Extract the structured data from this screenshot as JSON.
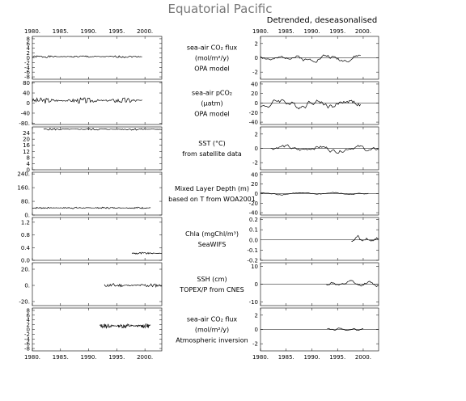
{
  "title": "Equatorial Pacific",
  "right_title": "Detrended, deseasonalised",
  "x_ticks": [
    "1980.",
    "1985.",
    "1990.",
    "1995.",
    "2000."
  ],
  "chart_data": [
    {
      "type": "line",
      "label_lines": [
        "sea-air CO₂ flux",
        "(mol/m²/y)",
        "OPA model"
      ],
      "left": {
        "xlim": [
          1980,
          2003
        ],
        "ylim": [
          -9,
          9
        ],
        "ticks": [
          8,
          6,
          4,
          2,
          0,
          -2,
          -4,
          -6,
          -8
        ],
        "tick_labels": [
          "8",
          "6",
          "4",
          "2",
          "0",
          "-2",
          "-4",
          "-6",
          "-8"
        ],
        "series": [
          {
            "x_start": 1980,
            "x_end": 1999.5,
            "mean": 0.5,
            "amp": 0.5,
            "n": 120,
            "seed": 1
          }
        ]
      },
      "right": {
        "xlim": [
          1980,
          2003
        ],
        "ylim": [
          -3,
          3
        ],
        "ticks": [
          2,
          0,
          -2
        ],
        "tick_labels": [
          "2",
          "0",
          "-2"
        ],
        "zero_line": true,
        "series": [
          {
            "x_start": 1980,
            "x_end": 1999.5,
            "mean": 0,
            "amp": 0.5,
            "n": 90,
            "seed": 2,
            "smooth": true
          }
        ]
      }
    },
    {
      "type": "line",
      "label_lines": [
        "sea-air pCO₂",
        "(μatm)",
        "OPA model"
      ],
      "left": {
        "xlim": [
          1980,
          2003
        ],
        "ylim": [
          -85,
          85
        ],
        "ticks": [
          80,
          40,
          0,
          -40,
          -80
        ],
        "tick_labels": [
          "80",
          "40",
          "0",
          "-40",
          "-80."
        ],
        "series": [
          {
            "x_start": 1980,
            "x_end": 1999.5,
            "mean": 10,
            "amp": 12,
            "n": 120,
            "seed": 3
          }
        ]
      },
      "right": {
        "xlim": [
          1980,
          2003
        ],
        "ylim": [
          -45,
          45
        ],
        "ticks": [
          40,
          20,
          0,
          -20,
          -40
        ],
        "tick_labels": [
          "40",
          "20",
          "0",
          "-20",
          "-40"
        ],
        "zero_line": true,
        "series": [
          {
            "x_start": 1980,
            "x_end": 1999.5,
            "mean": 0,
            "amp": 10,
            "n": 90,
            "seed": 4,
            "smooth": true
          }
        ]
      }
    },
    {
      "type": "line",
      "label_lines": [
        "SST (°C)",
        "from satellite data"
      ],
      "left": {
        "xlim": [
          1980,
          2003
        ],
        "ylim": [
          0,
          28
        ],
        "ticks": [
          24,
          20,
          16,
          12,
          8,
          4,
          0
        ],
        "tick_labels": [
          "24",
          "20",
          "16",
          "12",
          "8",
          "4",
          "0"
        ],
        "series": [
          {
            "x_start": 1982,
            "x_end": 2003,
            "mean": 26.5,
            "amp": 0.7,
            "n": 130,
            "seed": 5
          }
        ]
      },
      "right": {
        "xlim": [
          1980,
          2003
        ],
        "ylim": [
          -3,
          3
        ],
        "ticks": [
          2,
          0,
          -2
        ],
        "tick_labels": [
          "2",
          "0",
          "-2"
        ],
        "zero_line": true,
        "series": [
          {
            "x_start": 1982,
            "x_end": 2003,
            "mean": 0,
            "amp": 0.5,
            "n": 90,
            "seed": 6,
            "smooth": true
          }
        ]
      }
    },
    {
      "type": "line",
      "label_lines": [
        "Mixed Layer Depth (m)",
        "based on T from WOA2001"
      ],
      "left": {
        "xlim": [
          1980,
          2003
        ],
        "ylim": [
          0,
          250
        ],
        "ticks": [
          240,
          160,
          80,
          0
        ],
        "tick_labels": [
          "240.",
          "160.",
          "80.",
          "0."
        ],
        "series": [
          {
            "x_start": 1980,
            "x_end": 2001,
            "mean": 42,
            "amp": 5,
            "n": 160,
            "seed": 7
          }
        ]
      },
      "right": {
        "xlim": [
          1980,
          2003
        ],
        "ylim": [
          -45,
          45
        ],
        "ticks": [
          40,
          20,
          0,
          -20,
          -40
        ],
        "tick_labels": [
          "40",
          "20",
          "0",
          "-20",
          "-40"
        ],
        "zero_line": true,
        "series": [
          {
            "x_start": 1980,
            "x_end": 2001,
            "mean": 0,
            "amp": 2.5,
            "n": 80,
            "seed": 8,
            "smooth": true
          }
        ]
      }
    },
    {
      "type": "line",
      "label_lines": [
        "Chla (mgChl/m³)",
        "SeaWIFS"
      ],
      "left": {
        "xlim": [
          1980,
          2003
        ],
        "ylim": [
          0,
          1.35
        ],
        "ticks": [
          1.2,
          0.8,
          0.4,
          0.0
        ],
        "tick_labels": [
          "1.2",
          "0.8",
          "0.4",
          "0.0"
        ],
        "series": [
          {
            "x_start": 1997.7,
            "x_end": 2003,
            "mean": 0.22,
            "amp": 0.04,
            "n": 40,
            "seed": 9
          }
        ]
      },
      "right": {
        "xlim": [
          1980,
          2003
        ],
        "ylim": [
          -0.2,
          0.22
        ],
        "ticks": [
          0.2,
          0.1,
          0.0,
          -0.1,
          -0.2
        ],
        "tick_labels": [
          "0.2",
          "0.1",
          "0.0",
          "-0.1",
          "-0.2"
        ],
        "zero_line": true,
        "series": [
          {
            "x_start": 1997.7,
            "x_end": 2003,
            "mean": 0.01,
            "amp": 0.03,
            "n": 30,
            "seed": 10,
            "smooth": true
          }
        ]
      }
    },
    {
      "type": "line",
      "label_lines": [
        "SSH (cm)",
        "TOPEX/P from CNES"
      ],
      "left": {
        "xlim": [
          1980,
          2003
        ],
        "ylim": [
          -25,
          28
        ],
        "ticks": [
          20,
          0,
          -20
        ],
        "tick_labels": [
          "20.",
          "0.",
          "-20."
        ],
        "series": [
          {
            "x_start": 1992.8,
            "x_end": 2003,
            "mean": 0,
            "amp": 2.5,
            "n": 70,
            "seed": 11
          }
        ]
      },
      "right": {
        "xlim": [
          1980,
          2003
        ],
        "ylim": [
          -12,
          12
        ],
        "ticks": [
          10,
          0,
          -10
        ],
        "tick_labels": [
          "10",
          "0",
          "-10"
        ],
        "zero_line": true,
        "series": [
          {
            "x_start": 1992.8,
            "x_end": 2003,
            "mean": 0,
            "amp": 1.5,
            "n": 50,
            "seed": 12,
            "smooth": true
          }
        ]
      }
    },
    {
      "type": "line",
      "label_lines": [
        "sea-air CO₂ flux",
        "(mol/m²/y)",
        "Atmospheric inversion"
      ],
      "left": {
        "xlim": [
          1980,
          2003
        ],
        "ylim": [
          -9,
          9
        ],
        "ticks": [
          8,
          6,
          4,
          2,
          0,
          -2,
          -4,
          -6,
          -8
        ],
        "tick_labels": [
          "8",
          "6",
          "4",
          "2",
          "0",
          "-2",
          "-4",
          "-6",
          "-8"
        ],
        "series": [
          {
            "x_start": 1992,
            "x_end": 2001,
            "mean": 1.5,
            "amp": 1.0,
            "n": 110,
            "seed": 13
          }
        ]
      },
      "right": {
        "xlim": [
          1980,
          2003
        ],
        "ylim": [
          -3,
          3
        ],
        "ticks": [
          2,
          0,
          -2
        ],
        "tick_labels": [
          "2",
          "0",
          "-2"
        ],
        "zero_line": true,
        "series": [
          {
            "x_start": 1993,
            "x_end": 2000,
            "mean": 0,
            "amp": 0.2,
            "n": 40,
            "seed": 14,
            "smooth": true
          }
        ]
      }
    }
  ]
}
